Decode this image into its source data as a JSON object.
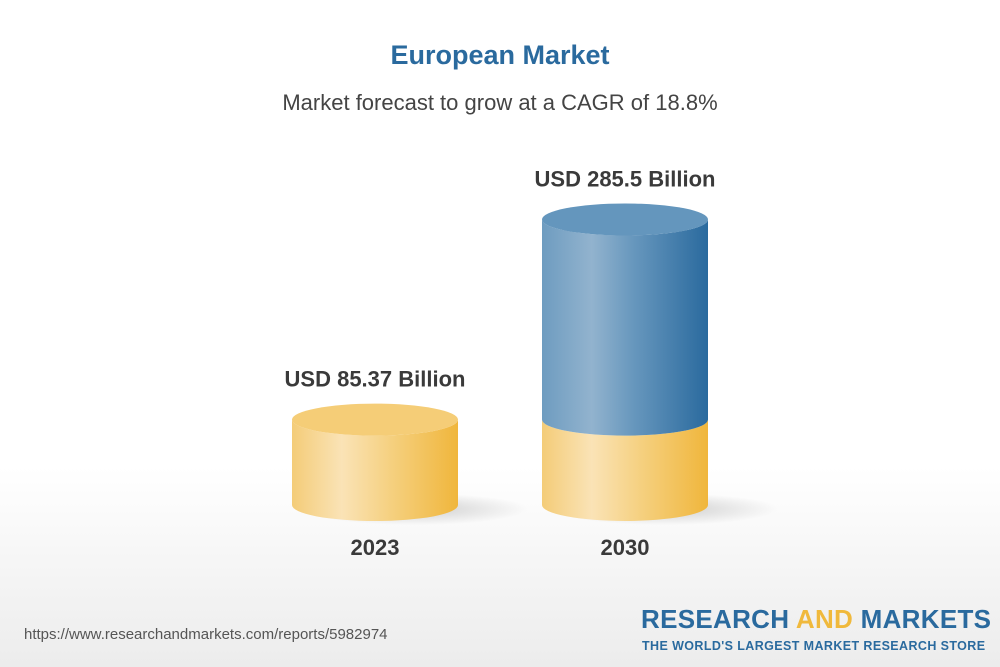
{
  "chart_data": {
    "type": "bar",
    "title": "European Market",
    "subtitle": "Market forecast to grow at a CAGR of 18.8%",
    "categories": [
      "2023",
      "2030"
    ],
    "values": [
      85.37,
      285.5
    ],
    "data_labels": [
      "USD 85.37 Billion",
      "USD 285.5 Billion"
    ],
    "unit": "USD Billion",
    "style": "3d-cylinder",
    "colors": {
      "base": "#f0b93c",
      "growth": "#2a6a9e",
      "title": "#2a6a9e"
    }
  },
  "footer": {
    "url": "https://www.researchandmarkets.com/reports/5982974",
    "logo_part1": "RESEARCH ",
    "logo_part2": "AND",
    "logo_part3": " MARKETS",
    "tagline": "THE WORLD'S LARGEST MARKET RESEARCH STORE"
  }
}
